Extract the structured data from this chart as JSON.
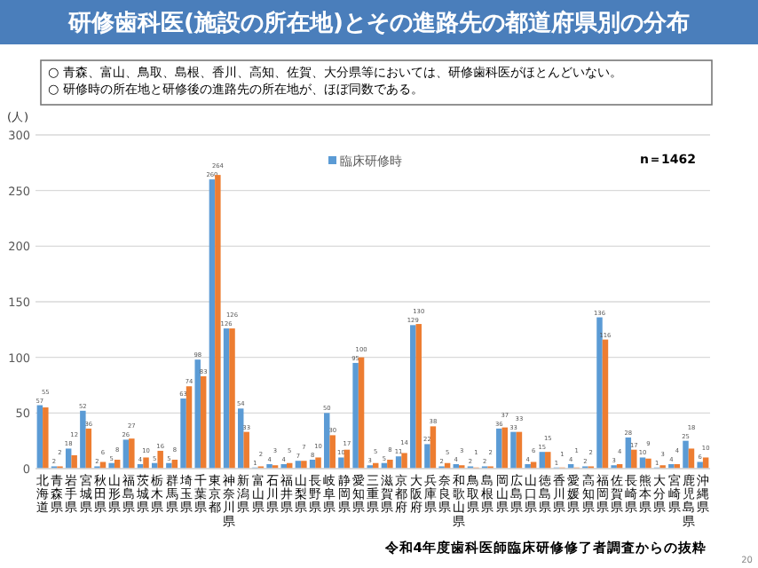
{
  "chart_data": {
    "type": "bar",
    "title": "研修歯科医(施設の所在地)とその進路先の都道府県別の分布",
    "subtitle": "○ 青森、富山、鳥取、島根、香川、高知、佐賀、大分県等においては、研修歯科医がほとんどいない。\n○ 研修時の所在地と研修後の進路先の所在地が、ほぼ同数である。",
    "ylabel": "(人)",
    "annotations": [
      "n＝1462",
      "令和4年度歯科医師臨床研修修了者調査からの抜粋",
      "20"
    ],
    "categories": [
      "北海道",
      "青森県",
      "岩手県",
      "宮城県",
      "秋田県",
      "山形県",
      "福島県",
      "茨城県",
      "栃木県",
      "群馬県",
      "埼玉県",
      "千葉県",
      "東京都",
      "神奈川県",
      "新潟県",
      "富山県",
      "石川県",
      "福井県",
      "山梨県",
      "長野県",
      "岐阜県",
      "静岡県",
      "愛知県",
      "三重県",
      "滋賀県",
      "京都府",
      "大阪府",
      "兵庫県",
      "奈良県",
      "和歌山県",
      "鳥取県",
      "島根県",
      "岡山県",
      "広島県",
      "山口県",
      "徳島県",
      "香川県",
      "愛媛県",
      "高知県",
      "福岡県",
      "佐賀県",
      "長崎県",
      "熊本県",
      "大分県",
      "宮崎県",
      "鹿児島県",
      "沖縄県"
    ],
    "series": [
      {
        "name": "臨床研修時",
        "color": "#5b9bd5",
        "values": [
          57,
          2,
          18,
          52,
          2,
          5,
          26,
          4,
          5,
          5,
          63,
          98,
          260,
          126,
          54,
          1,
          4,
          4,
          7,
          8,
          50,
          10,
          95,
          3,
          5,
          11,
          129,
          22,
          2,
          4,
          2,
          2,
          36,
          33,
          4,
          15,
          1,
          4,
          2,
          136,
          3,
          28,
          10,
          1,
          4,
          25,
          6
        ]
      },
      {
        "color": "#ed7d31",
        "values": [
          55,
          2,
          12,
          36,
          6,
          8,
          27,
          10,
          16,
          8,
          74,
          83,
          264,
          126,
          33,
          2,
          3,
          5,
          7,
          10,
          30,
          17,
          100,
          5,
          8,
          14,
          130,
          38,
          5,
          3,
          1,
          2,
          37,
          33,
          6,
          15,
          1,
          1,
          2,
          116,
          4,
          17,
          9,
          3,
          4,
          18,
          10
        ]
      }
    ],
    "ylim": [
      0,
      300
    ],
    "yticks": [
      0,
      50,
      100,
      150,
      200,
      250,
      300
    ],
    "grid": "y",
    "legend": "top",
    "data_labels": true
  }
}
